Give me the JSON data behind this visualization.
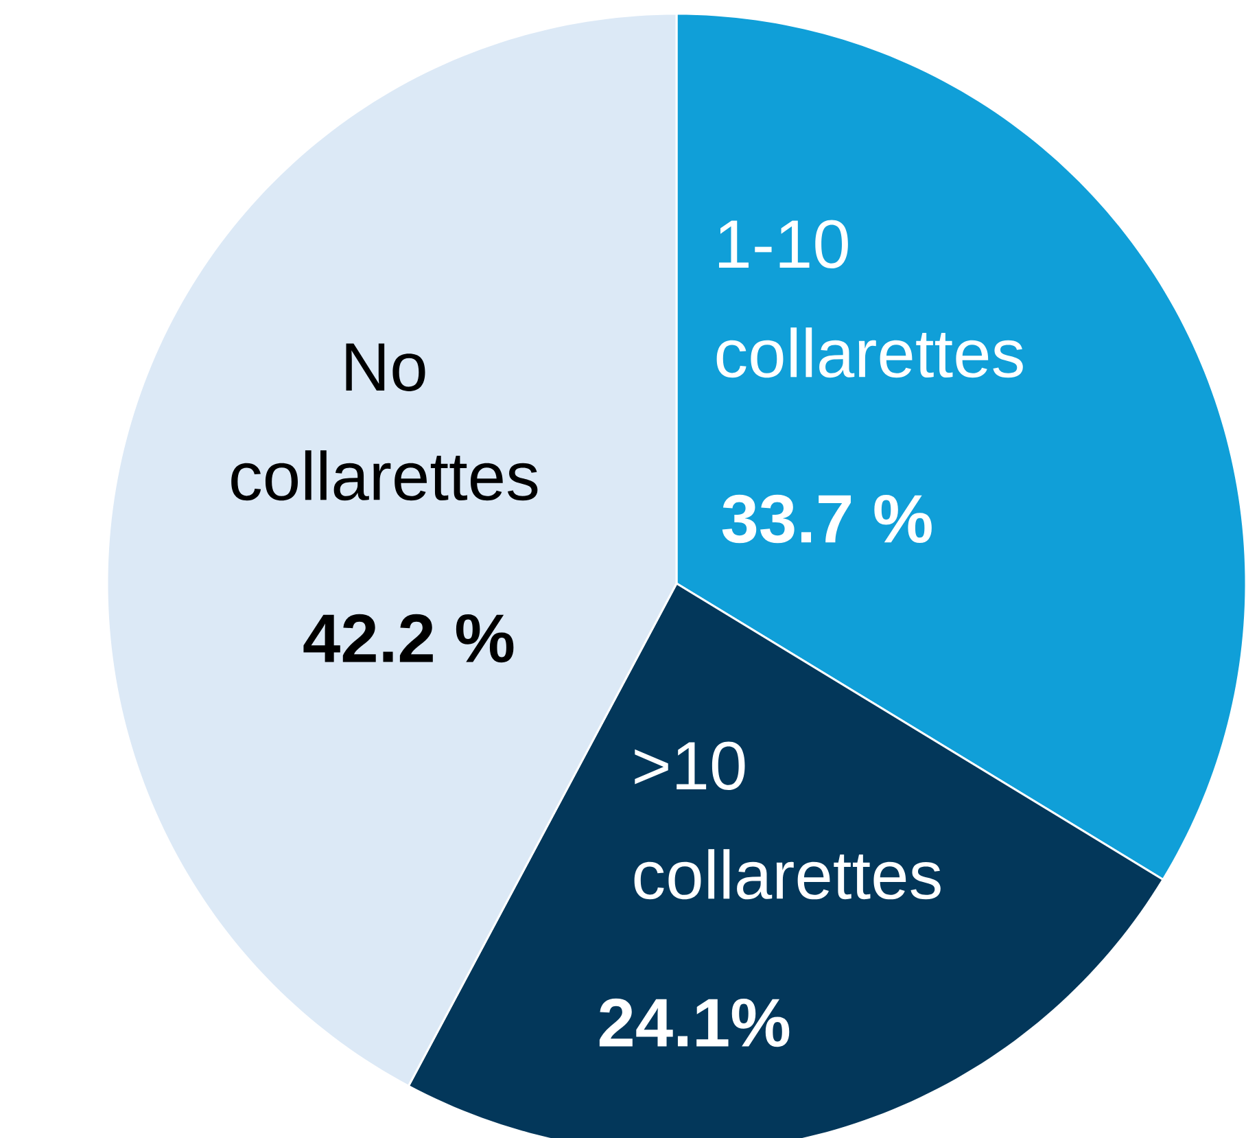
{
  "chart_data": {
    "type": "pie",
    "categories": [
      "1-10 collarettes",
      ">10 collarettes",
      "No collarettes"
    ],
    "values": [
      33.7,
      24.1,
      42.2
    ],
    "value_labels": [
      "33.7 %",
      "24.1%",
      "42.2 %"
    ],
    "colors": [
      "#109fd8",
      "#03375a",
      "#dce9f6"
    ],
    "legend": false
  }
}
